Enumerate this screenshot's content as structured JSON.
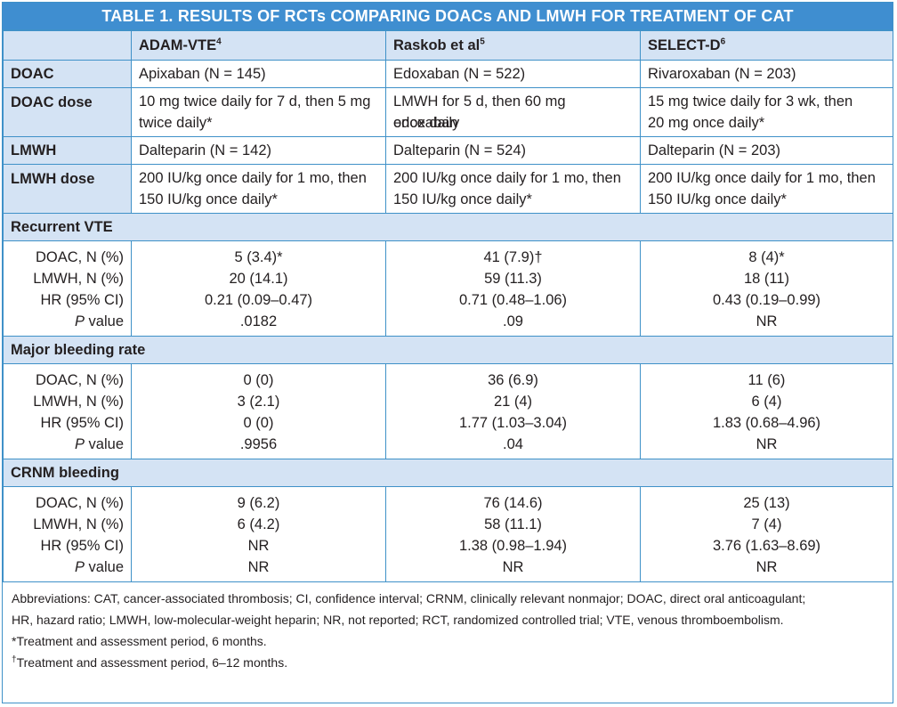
{
  "title": "TABLE 1.  RESULTS OF RCTs COMPARING DOACs AND LMWH FOR TREATMENT OF CAT",
  "columns": [
    {
      "name": "ADAM-VTE",
      "ref": "4"
    },
    {
      "name": "Raskob et al",
      "ref": "5"
    },
    {
      "name": "SELECT-D",
      "ref": "6"
    }
  ],
  "rows": {
    "doac": {
      "label": "DOAC",
      "values": [
        "Apixaban (N = 145)",
        "Edoxaban (N = 522)",
        "Rivaroxaban (N = 203)"
      ]
    },
    "doac_dose": {
      "label": "DOAC dose",
      "values": [
        [
          "10 mg twice daily for 7 d, then 5 mg",
          "twice daily*"
        ],
        [
          "LMWH for 5 d, then 60 mg edoxaban",
          "once daily"
        ],
        [
          "15 mg twice daily for 3 wk, then",
          "20 mg once daily*"
        ]
      ]
    },
    "lmwh": {
      "label": "LMWH",
      "values": [
        "Dalteparin (N = 142)",
        "Dalteparin (N = 524)",
        "Dalteparin (N = 203)"
      ]
    },
    "lmwh_dose": {
      "label": "LMWH dose",
      "values": [
        [
          "200 IU/kg once daily for 1 mo, then",
          "150 IU/kg once daily*"
        ],
        [
          "200 IU/kg once daily for 1 mo, then",
          "150 IU/kg once daily*"
        ],
        [
          "200 IU/kg once daily for 1 mo, then",
          "150 IU/kg once daily*"
        ]
      ]
    }
  },
  "sub_labels": {
    "doac": "DOAC, N (%)",
    "lmwh": "LMWH, N (%)",
    "hr": "HR (95% CI)",
    "p_prefix": "P",
    "p_suffix": " value"
  },
  "sections": [
    {
      "title": "Recurrent VTE",
      "values": [
        [
          "5 (3.4)*",
          "20 (14.1)",
          "0.21 (0.09–0.47)",
          ".0182"
        ],
        [
          "41 (7.9)†",
          "59 (11.3)",
          "0.71 (0.48–1.06)",
          ".09"
        ],
        [
          "8 (4)*",
          "18 (11)",
          "0.43 (0.19–0.99)",
          "NR"
        ]
      ]
    },
    {
      "title": "Major bleeding rate",
      "values": [
        [
          "0 (0)",
          "3 (2.1)",
          "0 (0)",
          ".9956"
        ],
        [
          "36 (6.9)",
          "21 (4)",
          "1.77 (1.03–3.04)",
          ".04"
        ],
        [
          "11 (6)",
          "6 (4)",
          "1.83 (0.68–4.96)",
          "NR"
        ]
      ]
    },
    {
      "title": "CRNM bleeding",
      "values": [
        [
          "9 (6.2)",
          "6 (4.2)",
          "NR",
          "NR"
        ],
        [
          "76 (14.6)",
          "58 (11.1)",
          "1.38 (0.98–1.94)",
          "NR"
        ],
        [
          "25 (13)",
          "7 (4)",
          "3.76 (1.63–8.69)",
          "NR"
        ]
      ]
    }
  ],
  "notes": {
    "abbrev_1": "Abbreviations: CAT, cancer-associated thrombosis; CI, confidence interval; CRNM, clinically relevant nonmajor; DOAC, direct oral anticoagulant;",
    "abbrev_2": "HR, hazard ratio; LMWH, low-molecular-weight heparin; NR, not reported; RCT, randomized controlled trial; VTE, venous thromboembolism.",
    "fn1_mark": "*",
    "fn1": "Treatment and assessment period, 6 months.",
    "fn2_mark": "†",
    "fn2": "Treatment and assessment period, 6–12 months."
  },
  "colors": {
    "header_blue": "#3f8ed0",
    "row_tint": "#d4e3f4",
    "border": "#3f91c8"
  }
}
